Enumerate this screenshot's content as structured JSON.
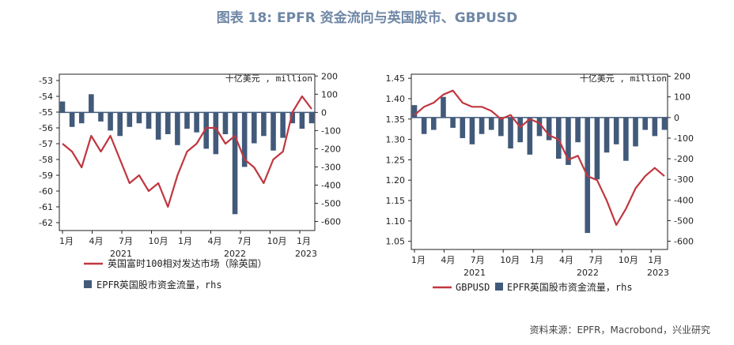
{
  "title": "图表 18: EPFR 资金流向与英国股市、GBPUSD",
  "source": "资料来源：EPFR，Macrobond，兴业研究",
  "colors": {
    "line": "#c0373f",
    "bar": "#425a7a",
    "axis": "#222222"
  },
  "chart_data": [
    {
      "type": "bar+line",
      "x_tick_labels": [
        "1月",
        "4月",
        "7月",
        "10月",
        "1月",
        "4月",
        "7月",
        "10月",
        "1月"
      ],
      "year_labels": [
        "2021",
        "2022",
        "2023"
      ],
      "y_left": {
        "ticks": [
          -53,
          -54,
          -55,
          -56,
          -57,
          -58,
          -59,
          -60,
          -61,
          -62
        ],
        "range": [
          -62.5,
          -52.6
        ]
      },
      "y_right": {
        "ticks": [
          200,
          100,
          0,
          -100,
          -200,
          -300,
          -400,
          -500,
          -600
        ],
        "range": [
          -650,
          210
        ],
        "unit": "十亿美元 , million"
      },
      "line_series": {
        "name": "英国富时100相对发达市场（除英国）",
        "months": [
          0,
          1,
          2,
          3,
          4,
          5,
          6,
          7,
          8,
          9,
          10,
          11,
          12,
          13,
          14,
          15,
          16,
          17,
          18,
          19,
          20,
          21,
          22,
          23,
          24,
          25,
          26
        ],
        "values": [
          -57.0,
          -57.5,
          -58.5,
          -56.5,
          -57.5,
          -56.5,
          -58.0,
          -59.5,
          -59.0,
          -60.0,
          -59.5,
          -61.0,
          -59.0,
          -57.5,
          -57.0,
          -56.0,
          -56.0,
          -57.0,
          -56.5,
          -58.0,
          -58.5,
          -59.5,
          -58.0,
          -57.5,
          -55.0,
          -54.0,
          -54.8
        ]
      },
      "bar_series": {
        "name": "EPFR英国股市资金流量，rhs",
        "months": [
          0,
          1,
          2,
          3,
          4,
          5,
          6,
          7,
          8,
          9,
          10,
          11,
          12,
          13,
          14,
          15,
          16,
          17,
          18,
          19,
          20,
          21,
          22,
          23,
          24,
          25,
          26
        ],
        "values": [
          60,
          -80,
          -60,
          100,
          -50,
          -100,
          -130,
          -80,
          -60,
          -90,
          -150,
          -120,
          -180,
          -90,
          -110,
          -200,
          -230,
          -120,
          -560,
          -300,
          -170,
          -130,
          -210,
          -140,
          -60,
          -90,
          -60
        ]
      }
    },
    {
      "type": "bar+line",
      "x_tick_labels": [
        "1月",
        "4月",
        "7月",
        "10月",
        "1月",
        "4月",
        "7月",
        "10月",
        "1月"
      ],
      "year_labels": [
        "2021",
        "2022",
        "2023"
      ],
      "y_left": {
        "ticks": [
          1.45,
          1.4,
          1.35,
          1.3,
          1.25,
          1.2,
          1.15,
          1.1,
          1.05
        ],
        "range": [
          1.03,
          1.46
        ]
      },
      "y_right": {
        "ticks": [
          200,
          100,
          0,
          -100,
          -200,
          -300,
          -400,
          -500,
          -600
        ],
        "range": [
          -640,
          210
        ],
        "unit": "十亿美元 , million"
      },
      "line_series": {
        "name": "GBPUSD",
        "months": [
          0,
          1,
          2,
          3,
          4,
          5,
          6,
          7,
          8,
          9,
          10,
          11,
          12,
          13,
          14,
          15,
          16,
          17,
          18,
          19,
          20,
          21,
          22,
          23,
          24,
          25,
          26
        ],
        "values": [
          1.36,
          1.38,
          1.39,
          1.41,
          1.42,
          1.39,
          1.38,
          1.38,
          1.37,
          1.35,
          1.36,
          1.33,
          1.35,
          1.34,
          1.31,
          1.3,
          1.25,
          1.26,
          1.21,
          1.2,
          1.15,
          1.09,
          1.13,
          1.18,
          1.21,
          1.23,
          1.21
        ]
      },
      "bar_series": {
        "name": "EPFR英国股市资金流量，rhs",
        "months": [
          0,
          1,
          2,
          3,
          4,
          5,
          6,
          7,
          8,
          9,
          10,
          11,
          12,
          13,
          14,
          15,
          16,
          17,
          18,
          19,
          20,
          21,
          22,
          23,
          24,
          25,
          26
        ],
        "values": [
          60,
          -80,
          -60,
          100,
          -50,
          -100,
          -130,
          -80,
          -60,
          -90,
          -150,
          -120,
          -180,
          -90,
          -110,
          -200,
          -230,
          -120,
          -560,
          -300,
          -170,
          -130,
          -210,
          -140,
          -60,
          -90,
          -60
        ]
      }
    }
  ]
}
